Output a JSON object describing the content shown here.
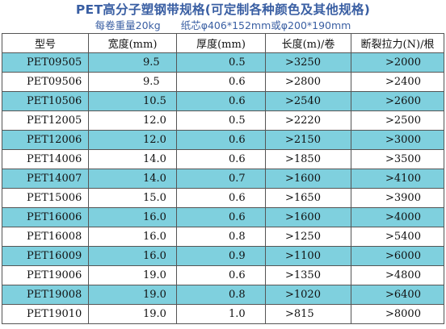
{
  "title": "PET高分子塑钢带规格(可定制各种颜色及其他规格)",
  "subtitle": "每卷重量20kg　　纸芯φ406*152mm或φ200*190mm",
  "table": {
    "headers": [
      "型号",
      "宽度(mm)",
      "厚度(mm)",
      "长度(m)/卷",
      "断裂拉力(N)/根"
    ],
    "rows": [
      {
        "model": "PET09505",
        "width": "9.5",
        "thickness": "0.5",
        "length": ">3250",
        "force": ">2000",
        "highlight": true
      },
      {
        "model": "PET09506",
        "width": "9.5",
        "thickness": "0.6",
        "length": ">2800",
        "force": ">2400",
        "highlight": false
      },
      {
        "model": "PET10506",
        "width": "10.5",
        "thickness": "0.6",
        "length": ">2540",
        "force": ">2600",
        "highlight": true
      },
      {
        "model": "PET12005",
        "width": "12.0",
        "thickness": "0.5",
        "length": ">2220",
        "force": ">2500",
        "highlight": false
      },
      {
        "model": "PET12006",
        "width": "12.0",
        "thickness": "0.6",
        "length": ">2150",
        "force": ">3000",
        "highlight": true
      },
      {
        "model": "PET14006",
        "width": "14.0",
        "thickness": "0.6",
        "length": ">1850",
        "force": ">3500",
        "highlight": false
      },
      {
        "model": "PET14007",
        "width": "14.0",
        "thickness": "0.7",
        "length": ">1600",
        "force": ">4100",
        "highlight": true
      },
      {
        "model": "PET15006",
        "width": "15.0",
        "thickness": "0.6",
        "length": ">1650",
        "force": ">3900",
        "highlight": false
      },
      {
        "model": "PET16006",
        "width": "16.0",
        "thickness": "0.6",
        "length": ">1600",
        "force": ">4000",
        "highlight": true
      },
      {
        "model": "PET16008",
        "width": "16.0",
        "thickness": "0.8",
        "length": ">1250",
        "force": ">5400",
        "highlight": false
      },
      {
        "model": "PET16009",
        "width": "16.0",
        "thickness": "0.9",
        "length": ">1100",
        "force": ">6000",
        "highlight": true
      },
      {
        "model": "PET19006",
        "width": "19.0",
        "thickness": "0.6",
        "length": ">1350",
        "force": ">4800",
        "highlight": false
      },
      {
        "model": "PET19008",
        "width": "19.0",
        "thickness": "0.8",
        "length": ">1020",
        "force": ">6400",
        "highlight": true
      },
      {
        "model": "PET19010",
        "width": "19.0",
        "thickness": "1.0",
        "length": ">815",
        "force": ">8000",
        "highlight": false
      }
    ]
  },
  "colors": {
    "title": "#3a5fa3",
    "row_highlight": "#7fd0de",
    "border": "#555555"
  }
}
